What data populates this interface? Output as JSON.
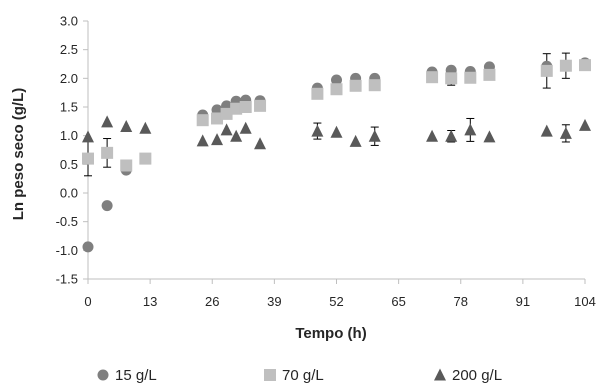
{
  "chart_data": {
    "type": "scatter",
    "xlabel": "Tempo (h)",
    "ylabel": "Ln peso seco (g/L)",
    "xlim": [
      0,
      104
    ],
    "ylim": [
      -1.5,
      3.0
    ],
    "xticks": [
      "0",
      "13",
      "26",
      "39",
      "52",
      "65",
      "78",
      "91",
      "104"
    ],
    "yticks": [
      "-1.5",
      "-1.0",
      "-0.5",
      "0.0",
      "0.5",
      "1.0",
      "1.5",
      "2.0",
      "2.5",
      "3.0"
    ],
    "legend_position": "bottom",
    "series": [
      {
        "name": "15 g/L",
        "marker": "circle",
        "color": "#7f7f7f",
        "points": [
          {
            "x": 0,
            "y": -0.94
          },
          {
            "x": 4,
            "y": -0.22
          },
          {
            "x": 8,
            "y": 0.4
          },
          {
            "x": 12,
            "y": 0.6
          },
          {
            "x": 24,
            "y": 1.36
          },
          {
            "x": 27,
            "y": 1.45
          },
          {
            "x": 29,
            "y": 1.52
          },
          {
            "x": 31,
            "y": 1.6
          },
          {
            "x": 33,
            "y": 1.62
          },
          {
            "x": 36,
            "y": 1.61
          },
          {
            "x": 48,
            "y": 1.83
          },
          {
            "x": 52,
            "y": 1.97
          },
          {
            "x": 56,
            "y": 2.0
          },
          {
            "x": 60,
            "y": 2.0
          },
          {
            "x": 72,
            "y": 2.11
          },
          {
            "x": 76,
            "y": 2.14
          },
          {
            "x": 80,
            "y": 2.12
          },
          {
            "x": 84,
            "y": 2.2
          },
          {
            "x": 96,
            "y": 2.21
          },
          {
            "x": 100,
            "y": 2.22
          },
          {
            "x": 104,
            "y": 2.27
          }
        ]
      },
      {
        "name": "70 g/L",
        "marker": "square",
        "color": "#bfbfbf",
        "points": [
          {
            "x": 0,
            "y": 0.6,
            "err": 0.3
          },
          {
            "x": 4,
            "y": 0.7,
            "err": 0.25
          },
          {
            "x": 8,
            "y": 0.48
          },
          {
            "x": 12,
            "y": 0.6
          },
          {
            "x": 24,
            "y": 1.27
          },
          {
            "x": 27,
            "y": 1.3
          },
          {
            "x": 29,
            "y": 1.38
          },
          {
            "x": 31,
            "y": 1.47
          },
          {
            "x": 33,
            "y": 1.5
          },
          {
            "x": 36,
            "y": 1.52
          },
          {
            "x": 48,
            "y": 1.73
          },
          {
            "x": 52,
            "y": 1.81
          },
          {
            "x": 56,
            "y": 1.87
          },
          {
            "x": 60,
            "y": 1.88
          },
          {
            "x": 72,
            "y": 2.02
          },
          {
            "x": 76,
            "y": 2.0,
            "err": 0.12
          },
          {
            "x": 80,
            "y": 2.01
          },
          {
            "x": 84,
            "y": 2.06
          },
          {
            "x": 96,
            "y": 2.13,
            "err": 0.3
          },
          {
            "x": 100,
            "y": 2.22,
            "err": 0.22
          },
          {
            "x": 104,
            "y": 2.23
          }
        ]
      },
      {
        "name": "200 g/L",
        "marker": "triangle",
        "color": "#595959",
        "points": [
          {
            "x": 0,
            "y": 0.98
          },
          {
            "x": 4,
            "y": 1.24
          },
          {
            "x": 8,
            "y": 1.16
          },
          {
            "x": 12,
            "y": 1.13
          },
          {
            "x": 24,
            "y": 0.91
          },
          {
            "x": 27,
            "y": 0.93
          },
          {
            "x": 29,
            "y": 1.1
          },
          {
            "x": 31,
            "y": 0.99
          },
          {
            "x": 33,
            "y": 1.13
          },
          {
            "x": 36,
            "y": 0.86
          },
          {
            "x": 48,
            "y": 1.08,
            "err": 0.14
          },
          {
            "x": 52,
            "y": 1.06
          },
          {
            "x": 56,
            "y": 0.9
          },
          {
            "x": 60,
            "y": 0.99,
            "err": 0.16
          },
          {
            "x": 72,
            "y": 0.99
          },
          {
            "x": 76,
            "y": 0.99,
            "err": 0.1
          },
          {
            "x": 80,
            "y": 1.1,
            "err": 0.2
          },
          {
            "x": 84,
            "y": 0.98
          },
          {
            "x": 96,
            "y": 1.08
          },
          {
            "x": 100,
            "y": 1.04,
            "err": 0.15
          },
          {
            "x": 104,
            "y": 1.18
          }
        ]
      }
    ]
  }
}
